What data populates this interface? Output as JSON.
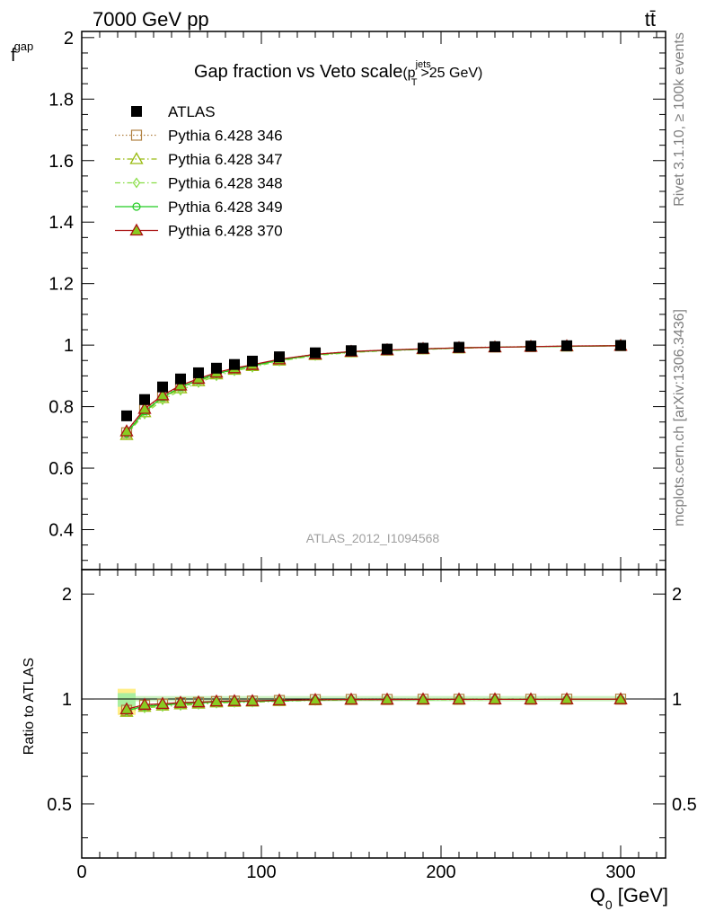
{
  "header": {
    "energy_label": "7000 GeV pp",
    "process_label": "tt̄",
    "side_rivet": "Rivet 3.1.10, ≥ 100k events",
    "side_mcplots": "mcplots.cern.ch [arXiv:1306.3436]"
  },
  "chart_data": {
    "type": "line",
    "title": {
      "main": "Gap fraction vs Veto scale",
      "cut_open": "(p",
      "cut_sup": "jets",
      "cut_sub": "T",
      "cut_rest": ">25 GeV)"
    },
    "analysis_label": "ATLAS_2012_I1094568",
    "xlabel": {
      "main": "Q",
      "sub": "0",
      "rest": " [GeV]"
    },
    "ylabel_top": {
      "main": "f",
      "sub": "gap"
    },
    "ylabel_bottom": "Ratio to ATLAS",
    "xlim": [
      0,
      325
    ],
    "ylim_top": [
      0.27,
      2.02
    ],
    "ylim_bottom": [
      0.35,
      2.35
    ],
    "x_ticks": [
      "0",
      "100",
      "200",
      "300"
    ],
    "y_ticks_top": [
      "0.4",
      "0.6",
      "0.8",
      "1",
      "1.2",
      "1.4",
      "1.6",
      "1.8",
      "2"
    ],
    "y_ticks_bottom": [
      "0.5",
      "1",
      "2"
    ],
    "legend_position": "top-left",
    "x": [
      25,
      35,
      45,
      55,
      65,
      75,
      85,
      95,
      110,
      130,
      150,
      170,
      190,
      210,
      230,
      250,
      270,
      300
    ],
    "series": [
      {
        "name": "ATLAS",
        "color": "#000000",
        "marker": "square",
        "line": "none",
        "values": [
          0.77,
          0.823,
          0.864,
          0.89,
          0.91,
          0.925,
          0.937,
          0.948,
          0.962,
          0.975,
          0.982,
          0.987,
          0.99,
          0.993,
          0.995,
          0.997,
          0.998,
          0.999
        ]
      },
      {
        "name": "Pythia 6.428 346",
        "color": "#b08040",
        "marker": "open-square",
        "line": "dotted",
        "values": [
          0.715,
          0.79,
          0.835,
          0.868,
          0.89,
          0.91,
          0.924,
          0.935,
          0.953,
          0.971,
          0.979,
          0.984,
          0.988,
          0.991,
          0.994,
          0.995,
          0.997,
          0.998
        ]
      },
      {
        "name": "Pythia 6.428 347",
        "color": "#99bb11",
        "marker": "open-triangle",
        "line": "dashdot",
        "values": [
          0.708,
          0.782,
          0.828,
          0.86,
          0.883,
          0.905,
          0.92,
          0.932,
          0.95,
          0.968,
          0.977,
          0.983,
          0.987,
          0.99,
          0.993,
          0.995,
          0.996,
          0.998
        ]
      },
      {
        "name": "Pythia 6.428 348",
        "color": "#88dd44",
        "marker": "open-diamond",
        "line": "dashdot",
        "values": [
          0.71,
          0.776,
          0.822,
          0.853,
          0.878,
          0.9,
          0.916,
          0.928,
          0.948,
          0.966,
          0.976,
          0.982,
          0.986,
          0.99,
          0.993,
          0.995,
          0.996,
          0.998
        ]
      },
      {
        "name": "Pythia 6.428 349",
        "color": "#22cc22",
        "marker": "open-circle-cross",
        "line": "solid",
        "values": [
          0.713,
          0.785,
          0.83,
          0.863,
          0.886,
          0.907,
          0.921,
          0.933,
          0.951,
          0.969,
          0.978,
          0.983,
          0.987,
          0.991,
          0.993,
          0.995,
          0.996,
          0.998
        ]
      },
      {
        "name": "Pythia 6.428 370",
        "color": "#aa1111",
        "marker": "open-triangle",
        "line": "solid",
        "values": [
          0.72,
          0.793,
          0.837,
          0.869,
          0.891,
          0.911,
          0.925,
          0.936,
          0.954,
          0.97,
          0.979,
          0.984,
          0.988,
          0.991,
          0.993,
          0.995,
          0.997,
          0.998
        ]
      }
    ],
    "ratio_band": {
      "x_start": 20,
      "x_end": 30,
      "yellow": [
        0.9,
        1.07
      ],
      "green": [
        0.95,
        1.04
      ]
    }
  }
}
